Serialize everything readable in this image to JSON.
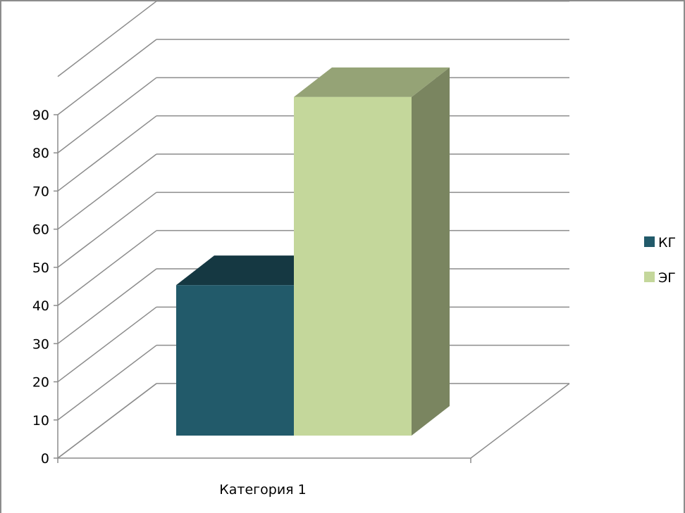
{
  "chart_data": {
    "type": "bar",
    "categories": [
      "Категория 1"
    ],
    "series": [
      {
        "name": "КГ",
        "values": [
          40
        ],
        "color": "#225a6a"
      },
      {
        "name": "ЭГ",
        "values": [
          90
        ],
        "color": "#c4d79b"
      }
    ],
    "yticks": [
      "0",
      "10",
      "20",
      "30",
      "40",
      "50",
      "60",
      "70",
      "80",
      "90"
    ],
    "ylim": [
      0,
      90
    ],
    "grid": true,
    "legend": "right",
    "style": "3d-column"
  }
}
